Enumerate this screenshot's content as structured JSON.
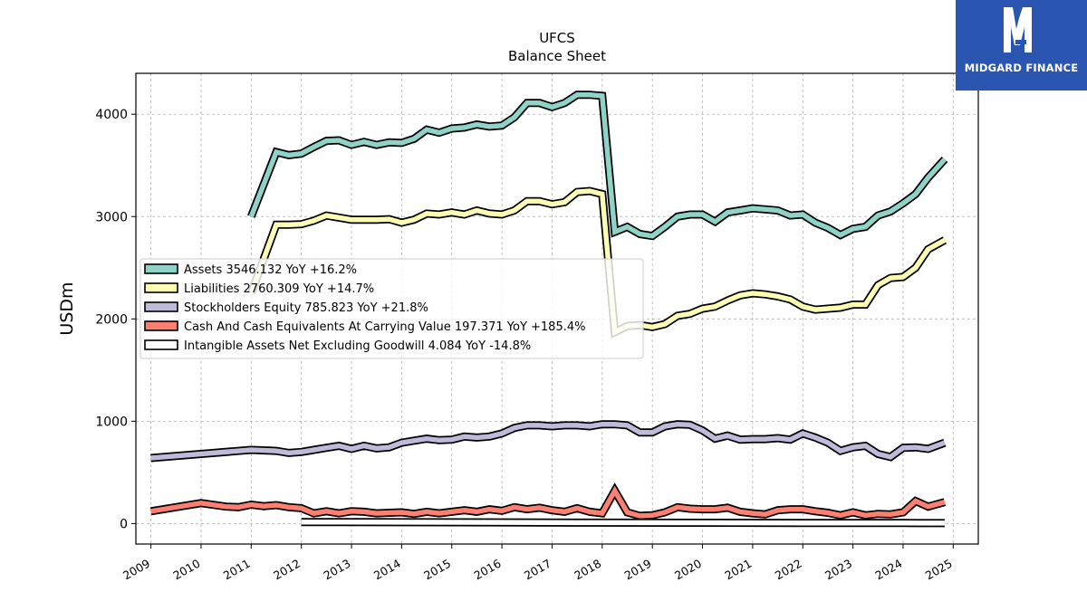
{
  "brand": {
    "name": "MIDGARD FINANCE",
    "color": "#2a55b0"
  },
  "chart_data": {
    "type": "line",
    "title": "UFCS",
    "subtitle": "Balance  Sheet",
    "xlabel": "",
    "ylabel": "USDm",
    "xlim": [
      2008.7,
      2025.5
    ],
    "ylim": [
      -200,
      4400
    ],
    "x_ticks": [
      "2009",
      "2010",
      "2011",
      "2012",
      "2013",
      "2014",
      "2015",
      "2016",
      "2017",
      "2018",
      "2019",
      "2020",
      "2021",
      "2022",
      "2023",
      "2024",
      "2025"
    ],
    "y_ticks": [
      "0",
      "1000",
      "2000",
      "3000",
      "4000"
    ],
    "grid": true,
    "legend_position": "center-left",
    "series": [
      {
        "name": "Assets",
        "legend_label": "Assets  3546.132 YoY +16.2%",
        "color": "#8dd3c7",
        "points": [
          [
            2011.0,
            3000
          ],
          [
            2011.5,
            3630
          ],
          [
            2011.75,
            3600
          ],
          [
            2012.0,
            3615
          ],
          [
            2012.25,
            3680
          ],
          [
            2012.5,
            3740
          ],
          [
            2012.75,
            3745
          ],
          [
            2013.0,
            3700
          ],
          [
            2013.25,
            3730
          ],
          [
            2013.5,
            3700
          ],
          [
            2013.75,
            3725
          ],
          [
            2014.0,
            3720
          ],
          [
            2014.25,
            3760
          ],
          [
            2014.5,
            3850
          ],
          [
            2014.75,
            3820
          ],
          [
            2015.0,
            3860
          ],
          [
            2015.25,
            3870
          ],
          [
            2015.5,
            3900
          ],
          [
            2015.75,
            3880
          ],
          [
            2016.0,
            3890
          ],
          [
            2016.25,
            3970
          ],
          [
            2016.5,
            4110
          ],
          [
            2016.75,
            4110
          ],
          [
            2017.0,
            4070
          ],
          [
            2017.25,
            4110
          ],
          [
            2017.5,
            4190
          ],
          [
            2017.75,
            4190
          ],
          [
            2018.0,
            4180
          ],
          [
            2018.25,
            2850
          ],
          [
            2018.5,
            2900
          ],
          [
            2018.75,
            2830
          ],
          [
            2019.0,
            2810
          ],
          [
            2019.25,
            2900
          ],
          [
            2019.5,
            3000
          ],
          [
            2019.75,
            3020
          ],
          [
            2020.0,
            3020
          ],
          [
            2020.25,
            2950
          ],
          [
            2020.5,
            3040
          ],
          [
            2020.75,
            3060
          ],
          [
            2021.0,
            3080
          ],
          [
            2021.25,
            3070
          ],
          [
            2021.5,
            3060
          ],
          [
            2021.75,
            3010
          ],
          [
            2022.0,
            3020
          ],
          [
            2022.25,
            2940
          ],
          [
            2022.5,
            2890
          ],
          [
            2022.75,
            2820
          ],
          [
            2023.0,
            2880
          ],
          [
            2023.25,
            2900
          ],
          [
            2023.5,
            3010
          ],
          [
            2023.75,
            3050
          ],
          [
            2024.0,
            3130
          ],
          [
            2024.25,
            3220
          ],
          [
            2024.5,
            3380
          ],
          [
            2024.83,
            3560
          ]
        ]
      },
      {
        "name": "Liabilities",
        "legend_label": "Liabilities  2760.309 YoY +14.7%",
        "color": "#ffffb3",
        "points": [
          [
            2011.0,
            2250
          ],
          [
            2011.5,
            2920
          ],
          [
            2011.75,
            2920
          ],
          [
            2012.0,
            2925
          ],
          [
            2012.25,
            2960
          ],
          [
            2012.5,
            3010
          ],
          [
            2012.75,
            2990
          ],
          [
            2013.0,
            2970
          ],
          [
            2013.25,
            2970
          ],
          [
            2013.5,
            2970
          ],
          [
            2013.75,
            2975
          ],
          [
            2014.0,
            2940
          ],
          [
            2014.25,
            2970
          ],
          [
            2014.5,
            3030
          ],
          [
            2014.75,
            3020
          ],
          [
            2015.0,
            3040
          ],
          [
            2015.25,
            3020
          ],
          [
            2015.5,
            3060
          ],
          [
            2015.75,
            3030
          ],
          [
            2016.0,
            3020
          ],
          [
            2016.25,
            3060
          ],
          [
            2016.5,
            3150
          ],
          [
            2016.75,
            3150
          ],
          [
            2017.0,
            3120
          ],
          [
            2017.25,
            3140
          ],
          [
            2017.5,
            3240
          ],
          [
            2017.75,
            3250
          ],
          [
            2018.0,
            3220
          ],
          [
            2018.25,
            1870
          ],
          [
            2018.5,
            1930
          ],
          [
            2018.75,
            1940
          ],
          [
            2019.0,
            1920
          ],
          [
            2019.25,
            1950
          ],
          [
            2019.5,
            2030
          ],
          [
            2019.75,
            2050
          ],
          [
            2020.0,
            2100
          ],
          [
            2020.25,
            2120
          ],
          [
            2020.5,
            2180
          ],
          [
            2020.75,
            2230
          ],
          [
            2021.0,
            2250
          ],
          [
            2021.25,
            2240
          ],
          [
            2021.5,
            2220
          ],
          [
            2021.75,
            2190
          ],
          [
            2022.0,
            2120
          ],
          [
            2022.25,
            2090
          ],
          [
            2022.5,
            2100
          ],
          [
            2022.75,
            2110
          ],
          [
            2023.0,
            2140
          ],
          [
            2023.25,
            2140
          ],
          [
            2023.5,
            2330
          ],
          [
            2023.75,
            2400
          ],
          [
            2024.0,
            2410
          ],
          [
            2024.25,
            2500
          ],
          [
            2024.5,
            2680
          ],
          [
            2024.83,
            2770
          ]
        ]
      },
      {
        "name": "Stockholders Equity",
        "legend_label": "Stockholders Equity  785.823 YoY +21.8%",
        "color": "#bebada",
        "points": [
          [
            2009.0,
            640
          ],
          [
            2010.0,
            680
          ],
          [
            2011.0,
            720
          ],
          [
            2011.5,
            710
          ],
          [
            2011.75,
            690
          ],
          [
            2012.0,
            700
          ],
          [
            2012.25,
            720
          ],
          [
            2012.5,
            740
          ],
          [
            2012.75,
            760
          ],
          [
            2013.0,
            730
          ],
          [
            2013.25,
            760
          ],
          [
            2013.5,
            735
          ],
          [
            2013.75,
            745
          ],
          [
            2014.0,
            790
          ],
          [
            2014.25,
            810
          ],
          [
            2014.5,
            830
          ],
          [
            2014.75,
            815
          ],
          [
            2015.0,
            820
          ],
          [
            2015.25,
            850
          ],
          [
            2015.5,
            840
          ],
          [
            2015.75,
            850
          ],
          [
            2016.0,
            880
          ],
          [
            2016.25,
            935
          ],
          [
            2016.5,
            960
          ],
          [
            2016.75,
            960
          ],
          [
            2017.0,
            950
          ],
          [
            2017.25,
            960
          ],
          [
            2017.5,
            960
          ],
          [
            2017.75,
            950
          ],
          [
            2018.0,
            970
          ],
          [
            2018.25,
            970
          ],
          [
            2018.5,
            960
          ],
          [
            2018.75,
            890
          ],
          [
            2019.0,
            890
          ],
          [
            2019.25,
            950
          ],
          [
            2019.5,
            970
          ],
          [
            2019.75,
            965
          ],
          [
            2020.0,
            910
          ],
          [
            2020.25,
            830
          ],
          [
            2020.5,
            860
          ],
          [
            2020.75,
            820
          ],
          [
            2021.0,
            825
          ],
          [
            2021.25,
            825
          ],
          [
            2021.5,
            835
          ],
          [
            2021.75,
            820
          ],
          [
            2022.0,
            880
          ],
          [
            2022.25,
            840
          ],
          [
            2022.5,
            790
          ],
          [
            2022.75,
            710
          ],
          [
            2023.0,
            745
          ],
          [
            2023.25,
            760
          ],
          [
            2023.5,
            680
          ],
          [
            2023.75,
            650
          ],
          [
            2024.0,
            740
          ],
          [
            2024.25,
            745
          ],
          [
            2024.5,
            730
          ],
          [
            2024.83,
            790
          ]
        ]
      },
      {
        "name": "Cash And Cash Equivalents At Carrying Value",
        "legend_label": "Cash And Cash Equivalents At Carrying Value  197.371 YoY +185.4%",
        "color": "#fb8072",
        "points": [
          [
            2009.0,
            120
          ],
          [
            2010.0,
            200
          ],
          [
            2010.5,
            165
          ],
          [
            2010.75,
            160
          ],
          [
            2011.0,
            185
          ],
          [
            2011.25,
            170
          ],
          [
            2011.5,
            180
          ],
          [
            2011.75,
            160
          ],
          [
            2012.0,
            150
          ],
          [
            2012.25,
            100
          ],
          [
            2012.5,
            120
          ],
          [
            2012.75,
            100
          ],
          [
            2013.0,
            120
          ],
          [
            2013.25,
            115
          ],
          [
            2013.5,
            100
          ],
          [
            2013.75,
            105
          ],
          [
            2014.0,
            110
          ],
          [
            2014.25,
            95
          ],
          [
            2014.5,
            115
          ],
          [
            2014.75,
            100
          ],
          [
            2015.0,
            115
          ],
          [
            2015.25,
            130
          ],
          [
            2015.5,
            115
          ],
          [
            2015.75,
            140
          ],
          [
            2016.0,
            125
          ],
          [
            2016.25,
            160
          ],
          [
            2016.5,
            140
          ],
          [
            2016.75,
            155
          ],
          [
            2017.0,
            130
          ],
          [
            2017.25,
            115
          ],
          [
            2017.5,
            150
          ],
          [
            2017.75,
            115
          ],
          [
            2018.0,
            100
          ],
          [
            2018.25,
            320
          ],
          [
            2018.5,
            110
          ],
          [
            2018.75,
            75
          ],
          [
            2019.0,
            80
          ],
          [
            2019.25,
            110
          ],
          [
            2019.5,
            160
          ],
          [
            2019.75,
            145
          ],
          [
            2020.0,
            140
          ],
          [
            2020.25,
            140
          ],
          [
            2020.5,
            155
          ],
          [
            2020.75,
            115
          ],
          [
            2021.0,
            100
          ],
          [
            2021.25,
            90
          ],
          [
            2021.5,
            130
          ],
          [
            2021.75,
            140
          ],
          [
            2022.0,
            140
          ],
          [
            2022.25,
            120
          ],
          [
            2022.5,
            105
          ],
          [
            2022.75,
            80
          ],
          [
            2023.0,
            110
          ],
          [
            2023.25,
            80
          ],
          [
            2023.5,
            95
          ],
          [
            2023.75,
            90
          ],
          [
            2024.0,
            110
          ],
          [
            2024.25,
            220
          ],
          [
            2024.5,
            165
          ],
          [
            2024.83,
            210
          ]
        ]
      },
      {
        "name": "Intangible Assets Net Excluding Goodwill",
        "legend_label": "Intangible Assets Net Excluding Goodwill  4.084 YoY -14.8%",
        "color": "#ffffff",
        "points": [
          [
            2012.0,
            15
          ],
          [
            2014.0,
            13
          ],
          [
            2016.0,
            11
          ],
          [
            2018.0,
            9
          ],
          [
            2020.0,
            8
          ],
          [
            2022.0,
            6
          ],
          [
            2024.0,
            5
          ],
          [
            2024.83,
            4
          ]
        ]
      }
    ]
  }
}
